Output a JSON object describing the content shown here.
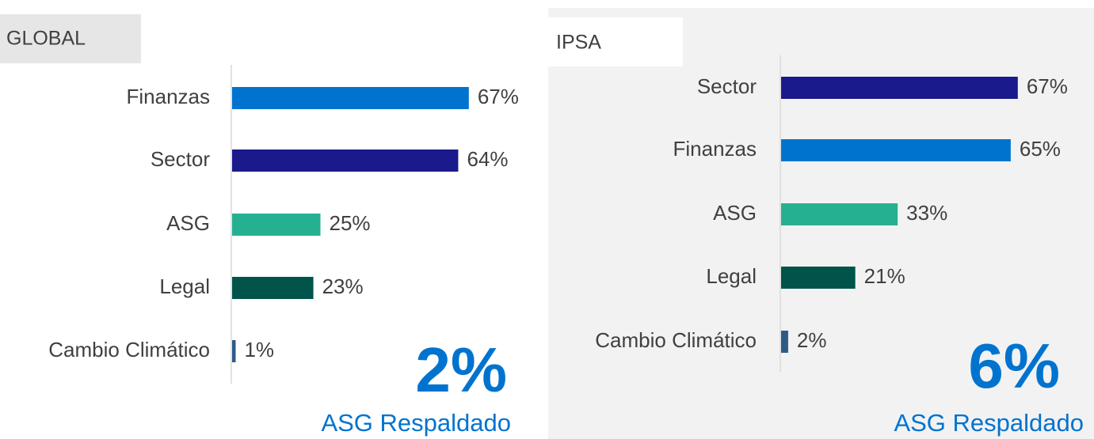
{
  "chart_data": [
    {
      "type": "bar",
      "title": "GLOBAL",
      "categories": [
        "Finanzas",
        "Sector",
        "ASG",
        "Legal",
        "Cambio Climático"
      ],
      "values": [
        67,
        64,
        25,
        23,
        1
      ],
      "value_labels": [
        "67%",
        "64%",
        "25%",
        "23%",
        "1%"
      ],
      "colors": [
        "#0073cf",
        "#1a1a8c",
        "#26b092",
        "#00544a",
        "#2e5a87"
      ],
      "xlim": [
        0,
        100
      ],
      "annotation": "2%",
      "annotation_label": "ASG Respaldado"
    },
    {
      "type": "bar",
      "title": "IPSA",
      "categories": [
        "Sector",
        "Finanzas",
        "ASG",
        "Legal",
        "Cambio Climático"
      ],
      "values": [
        67,
        65,
        33,
        21,
        2
      ],
      "value_labels": [
        "67%",
        "65%",
        "33%",
        "21%",
        "2%"
      ],
      "colors": [
        "#1a1a8c",
        "#0073cf",
        "#26b092",
        "#00544a",
        "#2e5a87"
      ],
      "xlim": [
        0,
        100
      ],
      "annotation": "6%",
      "annotation_label": "ASG Respaldado"
    }
  ]
}
